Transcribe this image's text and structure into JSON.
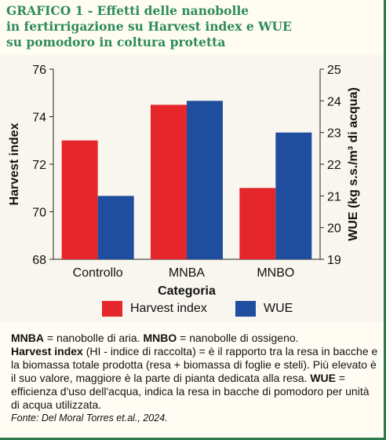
{
  "title_lines": [
    "GRAFICO 1 - Effetti delle nanobolle",
    "in fertirrigazione su Harvest index e WUE",
    "su pomodoro in coltura protetta"
  ],
  "chart_data": {
    "type": "bar",
    "categories": [
      "Controllo",
      "MNBA",
      "MNBO"
    ],
    "series": [
      {
        "name": "Harvest index",
        "axis": "left",
        "color": "#e5262b",
        "values": [
          73.0,
          74.5,
          71.0
        ]
      },
      {
        "name": "WUE",
        "axis": "right",
        "color": "#1f4e9e",
        "values": [
          21.0,
          24.0,
          23.0
        ]
      }
    ],
    "xlabel": "Categoria",
    "ylabel_left": "Harvest index",
    "ylabel_right": "WUE (kg s.s./m³ di acqua)",
    "ylim_left": [
      68,
      76
    ],
    "yticks_left": [
      "68",
      "70",
      "72",
      "74",
      "76"
    ],
    "ylim_right": [
      19,
      25
    ],
    "yticks_right": [
      "19",
      "20",
      "21",
      "22",
      "23",
      "24",
      "25"
    ],
    "grid": false,
    "legend": "bottom"
  },
  "legend_items": [
    {
      "label": "Harvest index",
      "color": "#e5262b"
    },
    {
      "label": "WUE",
      "color": "#1f4e9e"
    }
  ],
  "notes": {
    "mnba_term": "MNBA",
    "mnba_def": " = nanobolle di aria. ",
    "mnbo_term": "MNBO",
    "mnbo_def": " = nanobolle di ossigeno.",
    "hi_term": "Harvest index",
    "hi_def": " (HI - indice di raccolta) = è il rapporto tra la resa in bacche e la biomassa totale prodotta (resa + biomassa di foglie e steli). Più elevato è il suo valore, maggiore è la parte di pianta dedicata alla resa. ",
    "wue_term": "WUE",
    "wue_def": " = efficienza d'uso dell'acqua, indica la resa in bacche di pomodoro per unità di acqua utilizzata.",
    "source": "Fonte: Del Moral Torres et.al., 2024."
  }
}
